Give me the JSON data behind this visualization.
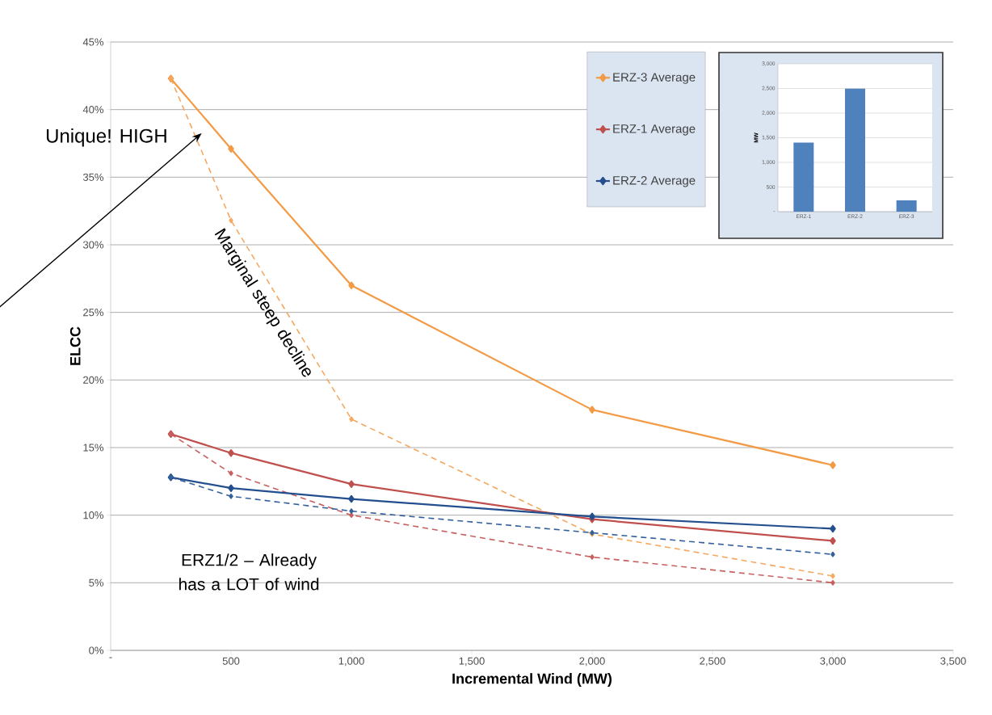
{
  "chart_data": [
    {
      "type": "line",
      "xlabel": "Incremental Wind (MW)",
      "ylabel": "ELCC",
      "x": [
        250,
        500,
        1000,
        2000,
        3000
      ],
      "series": [
        {
          "name": "ERZ-3 Average",
          "color": "#f39a45",
          "values": [
            42.3,
            37.1,
            27.0,
            17.8,
            13.7
          ]
        },
        {
          "color": "#f5a860",
          "line_style": "dashed",
          "values": [
            42.3,
            31.8,
            17.1,
            8.6,
            5.5
          ]
        },
        {
          "name": "ERZ-1 Average",
          "color": "#c0504d",
          "values": [
            16.0,
            14.6,
            12.3,
            9.7,
            8.1
          ]
        },
        {
          "color": "#c86060",
          "line_style": "dashed",
          "values": [
            16.0,
            13.1,
            10.0,
            6.9,
            5.0
          ]
        },
        {
          "name": "ERZ-2 Average",
          "color": "#244f8e",
          "values": [
            12.8,
            12.0,
            11.2,
            9.9,
            9.0
          ]
        },
        {
          "color": "#34609c",
          "line_style": "dashed",
          "values": [
            12.8,
            11.4,
            10.3,
            8.7,
            7.1
          ]
        }
      ],
      "xlim": [
        0,
        3500
      ],
      "ylim": [
        0,
        45
      ],
      "xticks": [
        {
          "value": 0,
          "label": "-"
        },
        500,
        {
          "value": 1000,
          "label": "1,000"
        },
        {
          "value": 1500,
          "label": "1,500"
        },
        {
          "value": 2000,
          "label": "2,000"
        },
        {
          "value": 2500,
          "label": "2,500"
        },
        {
          "value": 3000,
          "label": "3,000"
        },
        {
          "value": 3500,
          "label": "3,500"
        }
      ],
      "yticks": [
        {
          "value": 0,
          "label": "0%"
        },
        {
          "value": 5,
          "label": "5%"
        },
        {
          "value": 10,
          "label": "10%"
        },
        {
          "value": 15,
          "label": "15%"
        },
        {
          "value": 20,
          "label": "20%"
        },
        {
          "value": 25,
          "label": "25%"
        },
        {
          "value": 30,
          "label": "30%"
        },
        {
          "value": 35,
          "label": "35%"
        },
        {
          "value": 40,
          "label": "40%"
        },
        {
          "value": 45,
          "label": "45%"
        }
      ],
      "grid": "y",
      "legend": "top right",
      "marker": "diamond",
      "annotations": [
        "Unique! HIGH",
        "Marginal steep decline",
        "ERZ1/2 – Already has a LOT of wind"
      ]
    },
    {
      "type": "bar",
      "ylabel": "MW",
      "categories": [
        "ERZ-1",
        "ERZ-2",
        "ERZ-3"
      ],
      "values": [
        1400,
        2500,
        230
      ],
      "color": "#4f81bd",
      "ylim": [
        0,
        3000
      ],
      "yticks": [
        {
          "value": 0,
          "label": "-"
        },
        500,
        {
          "value": 1000,
          "label": "1,000"
        },
        {
          "value": 1500,
          "label": "1,500"
        },
        {
          "value": 2000,
          "label": "2,000"
        },
        {
          "value": 2500,
          "label": "2,500"
        },
        {
          "value": 3000,
          "label": "3,000"
        }
      ],
      "grid": "y"
    }
  ]
}
